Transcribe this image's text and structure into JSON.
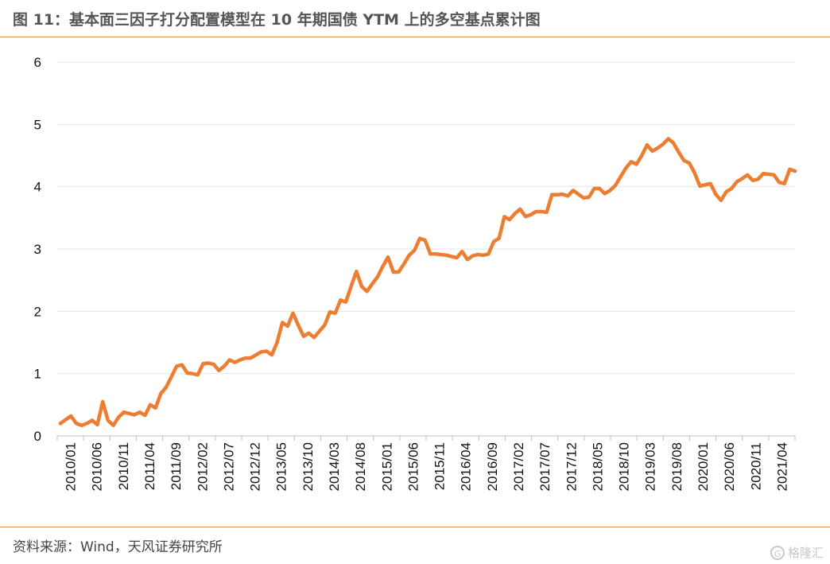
{
  "header": {
    "title": "图 11：基本面三因子打分配置模型在 10 年期国债 YTM 上的多空基点累计图"
  },
  "footer": {
    "source": "资料来源：Wind，天风证券研究所",
    "watermark": "格隆汇"
  },
  "colors": {
    "line": "#ed7d31",
    "rule": "#e38a45",
    "grid": "#e6e6e6"
  },
  "chart_data": {
    "type": "line",
    "title": "",
    "xlabel": "",
    "ylabel": "",
    "ylim": [
      0,
      6
    ],
    "yticks": [
      "0",
      "1",
      "2",
      "3",
      "4",
      "5",
      "6"
    ],
    "grid": "horizontal",
    "xtick_labels": [
      "2010/01",
      "2010/06",
      "2010/11",
      "2011/04",
      "2011/09",
      "2012/02",
      "2012/07",
      "2012/12",
      "2013/05",
      "2013/10",
      "2014/03",
      "2014/08",
      "2015/01",
      "2015/06",
      "2015/11",
      "2016/04",
      "2016/09",
      "2017/02",
      "2017/07",
      "2017/12",
      "2018/05",
      "2018/10",
      "2019/03",
      "2019/08",
      "2020/01",
      "2020/06",
      "2020/11",
      "2021/04"
    ],
    "series": [
      {
        "values": [
          0.2,
          0.26,
          0.32,
          0.2,
          0.17,
          0.2,
          0.25,
          0.18,
          0.55,
          0.25,
          0.17,
          0.3,
          0.38,
          0.36,
          0.34,
          0.38,
          0.33,
          0.5,
          0.45,
          0.68,
          0.78,
          0.95,
          1.12,
          1.14,
          1.01,
          1.0,
          0.98,
          1.16,
          1.17,
          1.15,
          1.05,
          1.12,
          1.22,
          1.18,
          1.22,
          1.25,
          1.25,
          1.3,
          1.35,
          1.36,
          1.3,
          1.5,
          1.82,
          1.76,
          1.97,
          1.78,
          1.6,
          1.65,
          1.58,
          1.68,
          1.78,
          1.99,
          1.97,
          2.18,
          2.15,
          2.4,
          2.64,
          2.4,
          2.32,
          2.44,
          2.55,
          2.72,
          2.87,
          2.63,
          2.63,
          2.76,
          2.9,
          2.98,
          3.17,
          3.14,
          2.92,
          2.92,
          2.91,
          2.9,
          2.88,
          2.86,
          2.96,
          2.83,
          2.89,
          2.91,
          2.9,
          2.92,
          3.12,
          3.17,
          3.52,
          3.47,
          3.57,
          3.64,
          3.52,
          3.55,
          3.6,
          3.6,
          3.59,
          3.87,
          3.87,
          3.88,
          3.85,
          3.94,
          3.88,
          3.82,
          3.83,
          3.97,
          3.97,
          3.89,
          3.94,
          4.02,
          4.16,
          4.3,
          4.4,
          4.36,
          4.5,
          4.67,
          4.57,
          4.62,
          4.68,
          4.77,
          4.7,
          4.55,
          4.42,
          4.38,
          4.22,
          4.01,
          4.03,
          4.05,
          3.88,
          3.78,
          3.92,
          3.97,
          4.08,
          4.13,
          4.19,
          4.1,
          4.12,
          4.21,
          4.2,
          4.19,
          4.07,
          4.05,
          4.28,
          4.25
        ]
      }
    ]
  }
}
